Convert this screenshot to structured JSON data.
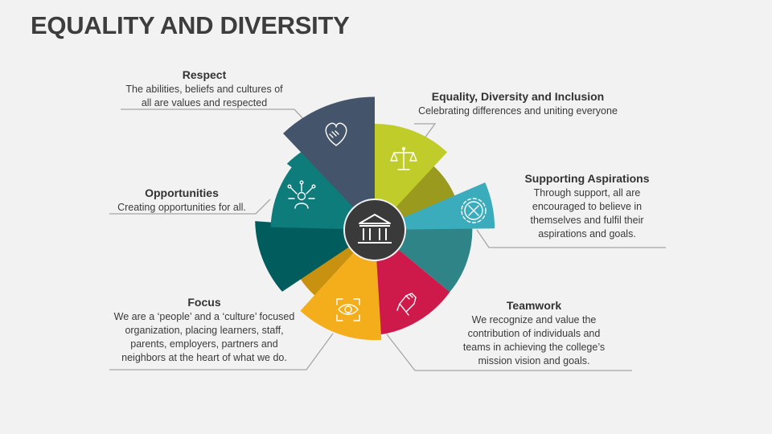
{
  "title": "EQUALITY AND DIVERSITY",
  "items": {
    "respect": {
      "heading": "Respect",
      "desc_lines": [
        "The abilities, beliefs and cultures of",
        "all are values and respected"
      ],
      "icon": "handshake-heart-icon",
      "color": "#44546a"
    },
    "edi": {
      "heading": "Equality, Diversity and Inclusion",
      "desc_lines": [
        "Celebrating differences and uniting everyone"
      ],
      "icon": "balance-scale-icon",
      "color": "#bfcc2a"
    },
    "aspirations": {
      "heading": "Supporting Aspirations",
      "desc_lines": [
        "Through support, all are",
        "encouraged to believe in",
        "themselves and fulfil their",
        "aspirations and goals."
      ],
      "icon": "gear-tools-icon",
      "color": "#3aacbc"
    },
    "teamwork": {
      "heading": "Teamwork",
      "desc_lines": [
        "We recognize and value the",
        "contribution of individuals and",
        "teams in achieving the college’s",
        "mission vision and goals."
      ],
      "icon": "raised-fist-icon",
      "color": "#cd1a4b"
    },
    "focus": {
      "heading": "Focus",
      "desc_lines": [
        "We are a ‘people’ and a ‘culture’ focused",
        "organization, placing learners, staff,",
        "parents, employers, partners and",
        "neighbors at the heart of what we do."
      ],
      "icon": "eye-focus-icon",
      "color": "#f4ae1b"
    },
    "opportunities": {
      "heading": "Opportunities",
      "desc_lines": [
        "Creating opportunities for all."
      ],
      "icon": "person-network-icon",
      "color": "#0e7c7b"
    }
  },
  "center_icon": "institution-building-icon",
  "colors": {
    "background": "#f2f2f2",
    "center_circle": "#3a3a3a",
    "olive": "#9a9a1e",
    "teal_mid": "#2e8487",
    "dark_teal": "#005c5d",
    "mustard": "#c8910f",
    "connector": "#a6a6a6"
  }
}
